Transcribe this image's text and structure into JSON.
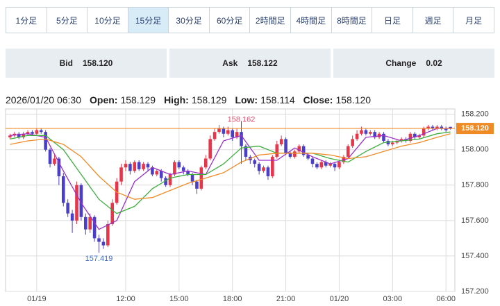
{
  "tabs": [
    "1分足",
    "5分足",
    "10分足",
    "15分足",
    "30分足",
    "60分足",
    "2時間足",
    "4時間足",
    "8時間足",
    "日足",
    "週足",
    "月足"
  ],
  "active_tab": 3,
  "quote_bar": [
    {
      "label": "Bid",
      "value": "158.120"
    },
    {
      "label": "Ask",
      "value": "158.122"
    },
    {
      "label": "Change",
      "value": "0.02"
    }
  ],
  "ohlc_header": {
    "time": "2026/01/20 06:30",
    "items": [
      {
        "label": "Open:",
        "value": "158.129"
      },
      {
        "label": "High:",
        "value": "158.129"
      },
      {
        "label": "Low:",
        "value": "158.114"
      },
      {
        "label": "Close:",
        "value": "158.120"
      }
    ]
  },
  "chart_data": {
    "type": "candlestick",
    "up_color": "#e5364a",
    "down_color": "#4a3fc6",
    "open": [
      158.07,
      158.08,
      158.09,
      158.07,
      158.09,
      158.1,
      158.09,
      158.11,
      158.1,
      158.0,
      157.92,
      157.95,
      157.85,
      157.7,
      157.64,
      157.6,
      157.8,
      157.62,
      157.55,
      157.62,
      157.5,
      157.48,
      157.46,
      157.58,
      157.7,
      157.82,
      157.9,
      157.92,
      157.88,
      157.93,
      157.89,
      157.92,
      157.9,
      157.86,
      157.88,
      157.84,
      157.8,
      157.86,
      157.93,
      157.9,
      157.88,
      157.86,
      157.82,
      157.78,
      157.9,
      157.95,
      158.06,
      158.1,
      158.12,
      158.09,
      158.11,
      158.07,
      158.1,
      158.02,
      157.96,
      157.94,
      157.92,
      157.88,
      157.9,
      157.85,
      157.96,
      158.03,
      158.06,
      157.98,
      157.96,
      157.99,
      158.02,
      157.97,
      157.95,
      157.92,
      157.9,
      157.93,
      157.91,
      157.92,
      157.9,
      157.93,
      157.96,
      158.02,
      158.06,
      158.09,
      158.11,
      158.09,
      158.1,
      158.07,
      158.09,
      158.05,
      158.03,
      158.04,
      158.05,
      158.06,
      158.05,
      158.09,
      158.07,
      158.08,
      158.12,
      158.13,
      158.12,
      158.13,
      158.12,
      158.129
    ],
    "high": [
      158.09,
      158.1,
      158.1,
      158.1,
      158.11,
      158.11,
      158.12,
      158.12,
      158.11,
      158.01,
      157.97,
      157.96,
      157.87,
      157.72,
      157.66,
      157.82,
      157.81,
      157.64,
      157.64,
      157.63,
      157.52,
      157.5,
      157.6,
      157.72,
      157.84,
      157.92,
      157.94,
      157.93,
      157.94,
      157.94,
      157.93,
      157.93,
      157.91,
      157.89,
      157.89,
      157.85,
      157.87,
      157.94,
      157.94,
      157.91,
      157.89,
      157.87,
      157.83,
      157.91,
      157.97,
      158.08,
      158.12,
      158.14,
      158.13,
      158.13,
      158.12,
      158.12,
      158.162,
      158.03,
      157.97,
      157.95,
      157.93,
      157.91,
      157.91,
      157.97,
      158.05,
      158.08,
      158.07,
      157.99,
      158.0,
      158.03,
      158.03,
      157.98,
      157.96,
      157.93,
      157.94,
      157.94,
      157.93,
      157.93,
      157.94,
      157.97,
      158.03,
      158.08,
      158.11,
      158.13,
      158.12,
      158.11,
      158.11,
      158.1,
      158.1,
      158.06,
      158.05,
      158.06,
      158.07,
      158.07,
      158.1,
      158.1,
      158.09,
      158.13,
      158.14,
      158.14,
      158.14,
      158.14,
      158.13,
      158.129
    ],
    "low": [
      158.06,
      158.07,
      158.06,
      158.06,
      158.08,
      158.08,
      158.08,
      158.09,
      157.99,
      157.9,
      157.91,
      157.8,
      157.68,
      157.62,
      157.53,
      157.58,
      157.6,
      157.52,
      157.53,
      157.48,
      157.419,
      157.44,
      157.45,
      157.57,
      157.69,
      157.8,
      157.88,
      157.86,
      157.87,
      157.88,
      157.88,
      157.88,
      157.85,
      157.85,
      157.82,
      157.79,
      157.79,
      157.85,
      157.89,
      157.86,
      157.85,
      157.8,
      157.75,
      157.77,
      157.89,
      157.94,
      158.05,
      158.09,
      158.07,
      158.08,
      158.05,
      158.06,
      157.92,
      157.94,
      157.92,
      157.9,
      157.86,
      157.87,
      157.83,
      157.84,
      157.95,
      158.02,
      157.97,
      157.95,
      157.95,
      157.98,
      157.96,
      157.94,
      157.9,
      157.89,
      157.89,
      157.9,
      157.9,
      157.88,
      157.89,
      157.92,
      157.95,
      158.01,
      158.05,
      158.08,
      158.08,
      158.08,
      158.06,
      158.06,
      158.04,
      158.02,
      158.02,
      158.03,
      158.04,
      158.04,
      158.04,
      158.06,
      158.06,
      158.07,
      158.11,
      158.11,
      158.11,
      158.11,
      158.1,
      158.114
    ],
    "close": [
      158.08,
      158.09,
      158.07,
      158.09,
      158.1,
      158.09,
      158.11,
      158.1,
      158.0,
      157.92,
      157.95,
      157.85,
      157.7,
      157.64,
      157.6,
      157.8,
      157.62,
      157.55,
      157.62,
      157.5,
      157.48,
      157.46,
      157.58,
      157.7,
      157.82,
      157.9,
      157.92,
      157.88,
      157.93,
      157.89,
      157.92,
      157.9,
      157.86,
      157.88,
      157.84,
      157.8,
      157.86,
      157.93,
      157.9,
      157.88,
      157.86,
      157.82,
      157.78,
      157.9,
      157.95,
      158.06,
      158.1,
      158.12,
      158.09,
      158.11,
      158.07,
      158.1,
      158.02,
      157.96,
      157.94,
      157.92,
      157.88,
      157.9,
      157.85,
      157.96,
      158.03,
      158.06,
      157.98,
      157.96,
      157.99,
      158.02,
      157.97,
      157.95,
      157.92,
      157.9,
      157.93,
      157.91,
      157.92,
      157.9,
      157.93,
      157.96,
      158.02,
      158.06,
      158.09,
      158.11,
      158.09,
      158.1,
      158.07,
      158.09,
      158.05,
      158.03,
      158.04,
      158.05,
      158.06,
      158.05,
      158.09,
      158.07,
      158.08,
      158.12,
      158.13,
      158.12,
      158.13,
      158.12,
      158.11,
      158.12
    ],
    "ma": [
      {
        "color": "#9b2fc9",
        "x": [
          0,
          4,
          8,
          12,
          16,
          20,
          24,
          28,
          32,
          36,
          40,
          44,
          48,
          52,
          56,
          60,
          64,
          68,
          72,
          76,
          80,
          84,
          88,
          92,
          96,
          99
        ],
        "values": [
          158.08,
          158.09,
          158.07,
          157.88,
          157.7,
          157.55,
          157.6,
          157.82,
          157.9,
          157.86,
          157.88,
          157.86,
          158.05,
          158.08,
          157.94,
          157.94,
          158.01,
          157.96,
          157.92,
          157.95,
          158.07,
          158.08,
          158.05,
          158.08,
          158.12,
          158.12
        ]
      },
      {
        "color": "#3cae3c",
        "x": [
          0,
          4,
          8,
          12,
          16,
          20,
          24,
          28,
          32,
          36,
          40,
          44,
          48,
          52,
          56,
          60,
          64,
          68,
          72,
          76,
          80,
          84,
          88,
          92,
          96,
          99
        ],
        "values": [
          158.06,
          158.08,
          158.08,
          158.0,
          157.86,
          157.72,
          157.64,
          157.68,
          157.78,
          157.84,
          157.86,
          157.86,
          157.92,
          158.01,
          158.02,
          157.98,
          157.98,
          157.98,
          157.95,
          157.93,
          157.99,
          158.04,
          158.05,
          158.06,
          158.09,
          158.1
        ]
      },
      {
        "color": "#f08a24",
        "x": [
          0,
          4,
          8,
          12,
          16,
          20,
          24,
          28,
          32,
          36,
          40,
          44,
          48,
          52,
          56,
          60,
          64,
          68,
          72,
          76,
          80,
          84,
          88,
          92,
          96,
          99
        ],
        "values": [
          158.03,
          158.05,
          158.06,
          158.03,
          157.96,
          157.85,
          157.76,
          157.72,
          157.73,
          157.77,
          157.81,
          157.84,
          157.87,
          157.93,
          157.97,
          157.98,
          157.98,
          157.98,
          157.97,
          157.95,
          157.96,
          157.99,
          158.02,
          158.04,
          158.07,
          158.09
        ]
      }
    ],
    "xlim": [
      -1,
      100
    ],
    "xticks": [
      {
        "value": 6,
        "label": "01/19"
      },
      {
        "value": 26,
        "label": "12:00"
      },
      {
        "value": 38,
        "label": "15:00"
      },
      {
        "value": 50,
        "label": "18:00"
      },
      {
        "value": 62,
        "label": "21:00"
      },
      {
        "value": 74,
        "label": "01/20"
      },
      {
        "value": 86,
        "label": "03:00"
      },
      {
        "value": 98,
        "label": "06:00"
      }
    ],
    "ylim": [
      157.2,
      158.23
    ],
    "yticks": [
      {
        "value": 157.2,
        "label": "157.200"
      },
      {
        "value": 157.4,
        "label": "157.400"
      },
      {
        "value": 157.6,
        "label": "157.600"
      },
      {
        "value": 157.8,
        "label": "157.800"
      },
      {
        "value": 158,
        "label": "158.000"
      },
      {
        "value": 158.2,
        "label": "158.200"
      }
    ],
    "grid": true,
    "last_price": {
      "value": 158.12,
      "label": "158.120",
      "color": "#f08a24"
    },
    "annotations": [
      {
        "x": 52,
        "value": 158.162,
        "label": "158.162",
        "color": "#e0506e",
        "position": "above"
      },
      {
        "x": 20,
        "value": 157.419,
        "label": "157.419",
        "color": "#3b6fc4",
        "position": "below"
      }
    ]
  }
}
